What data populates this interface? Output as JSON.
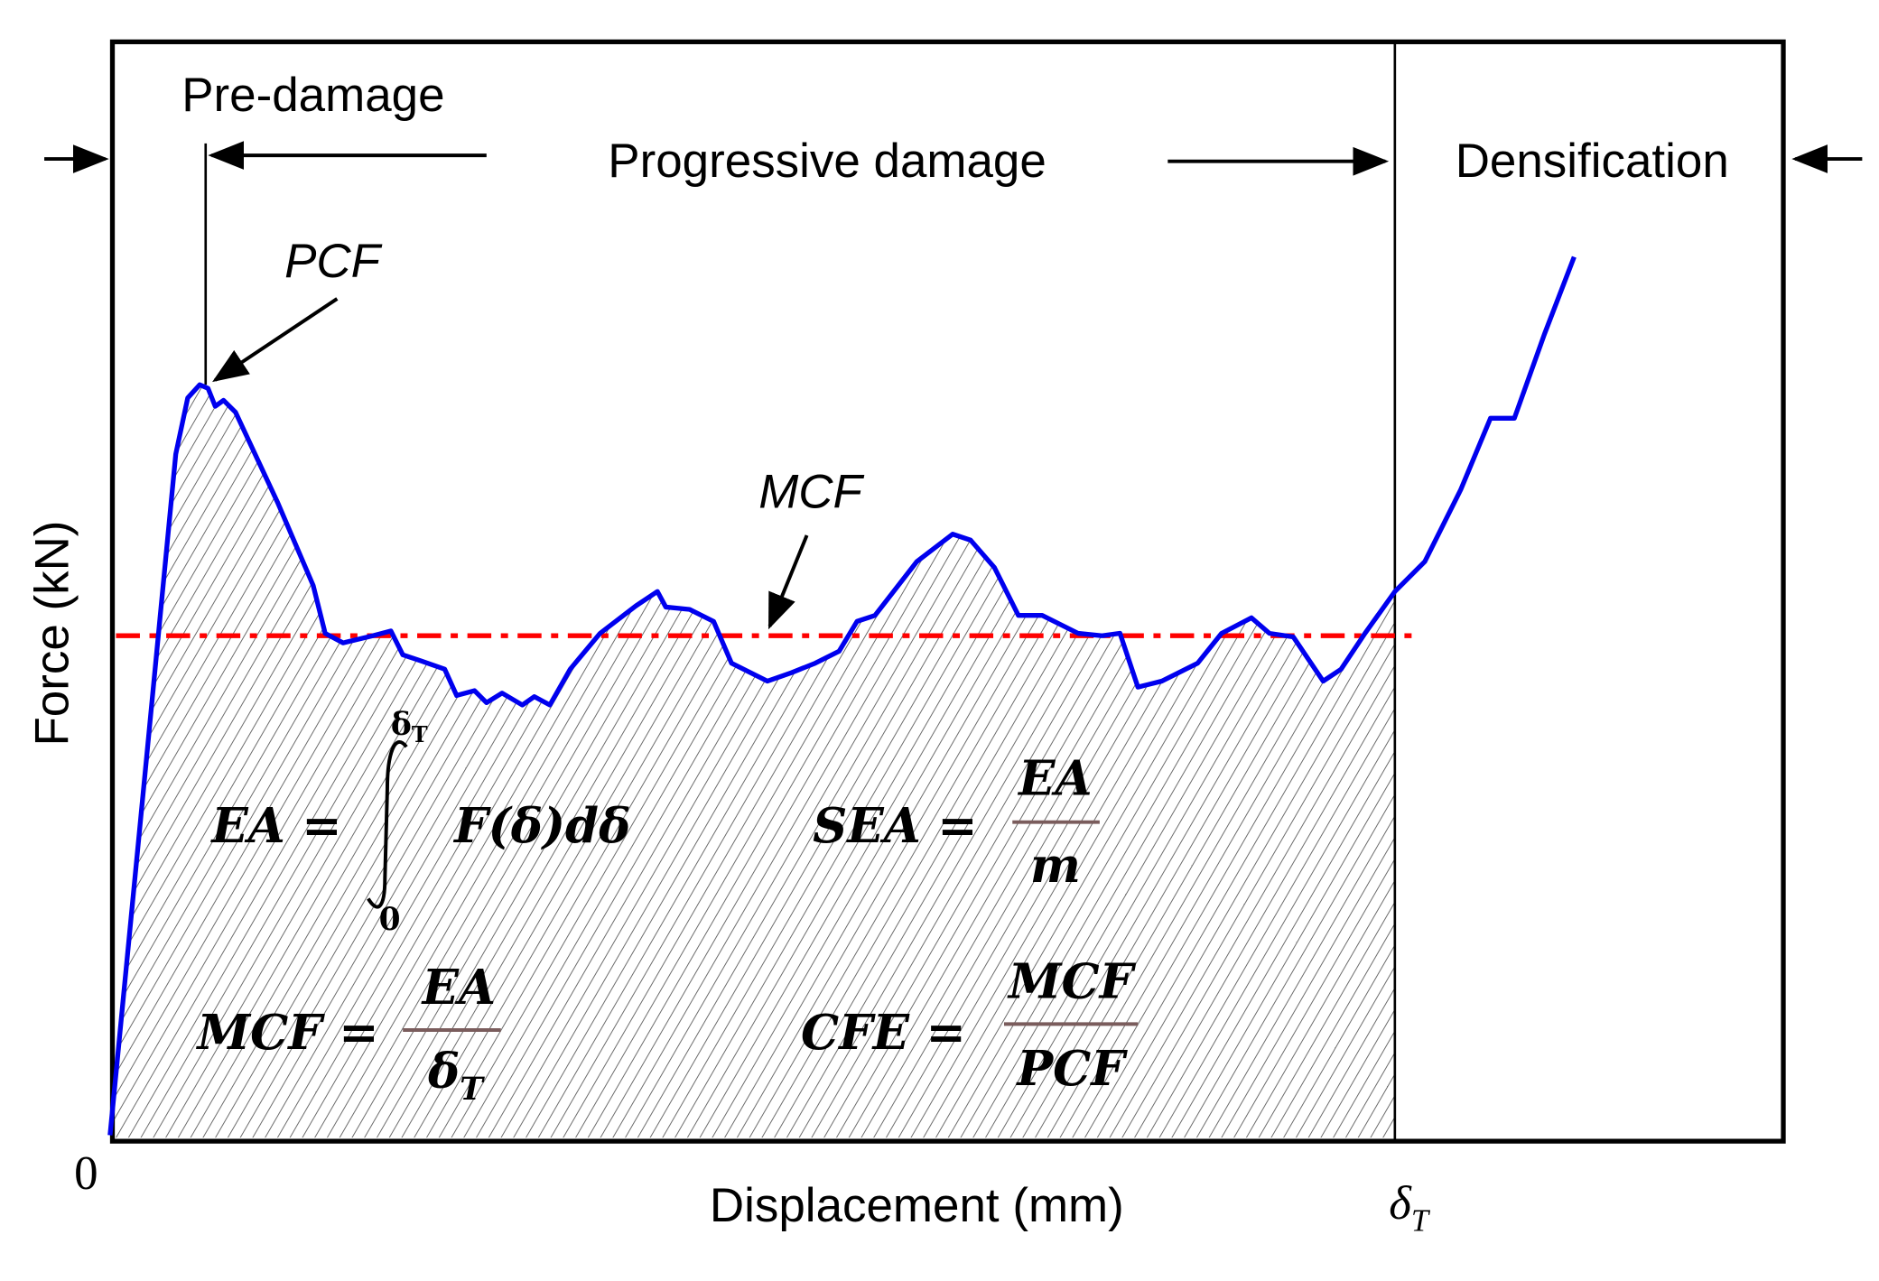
{
  "regions": {
    "pre_damage": "Pre-damage",
    "progressive_damage": "Progressive damage",
    "densification": "Densification"
  },
  "annotations": {
    "pcf": "PCF",
    "mcf": "MCF"
  },
  "axes": {
    "y_label": "Force (kN)",
    "x_label": "Displacement (mm)",
    "origin": "0",
    "delta_t": {
      "base": "δ",
      "sub": "T"
    }
  },
  "formulas": {
    "ea": {
      "lhs": "EA =",
      "upper_limit": {
        "base": "δ",
        "sub": "T"
      },
      "lower_limit": "0",
      "integrand": "F(δ)dδ"
    },
    "sea": {
      "lhs": "SEA =",
      "numerator": "EA",
      "denominator": "m"
    },
    "mcf": {
      "lhs": "MCF =",
      "numerator": "EA",
      "denominator": {
        "base": "δ",
        "sub": "T"
      }
    },
    "cfe": {
      "lhs": "CFE =",
      "numerator": "MCF",
      "denominator": "PCF"
    }
  }
}
